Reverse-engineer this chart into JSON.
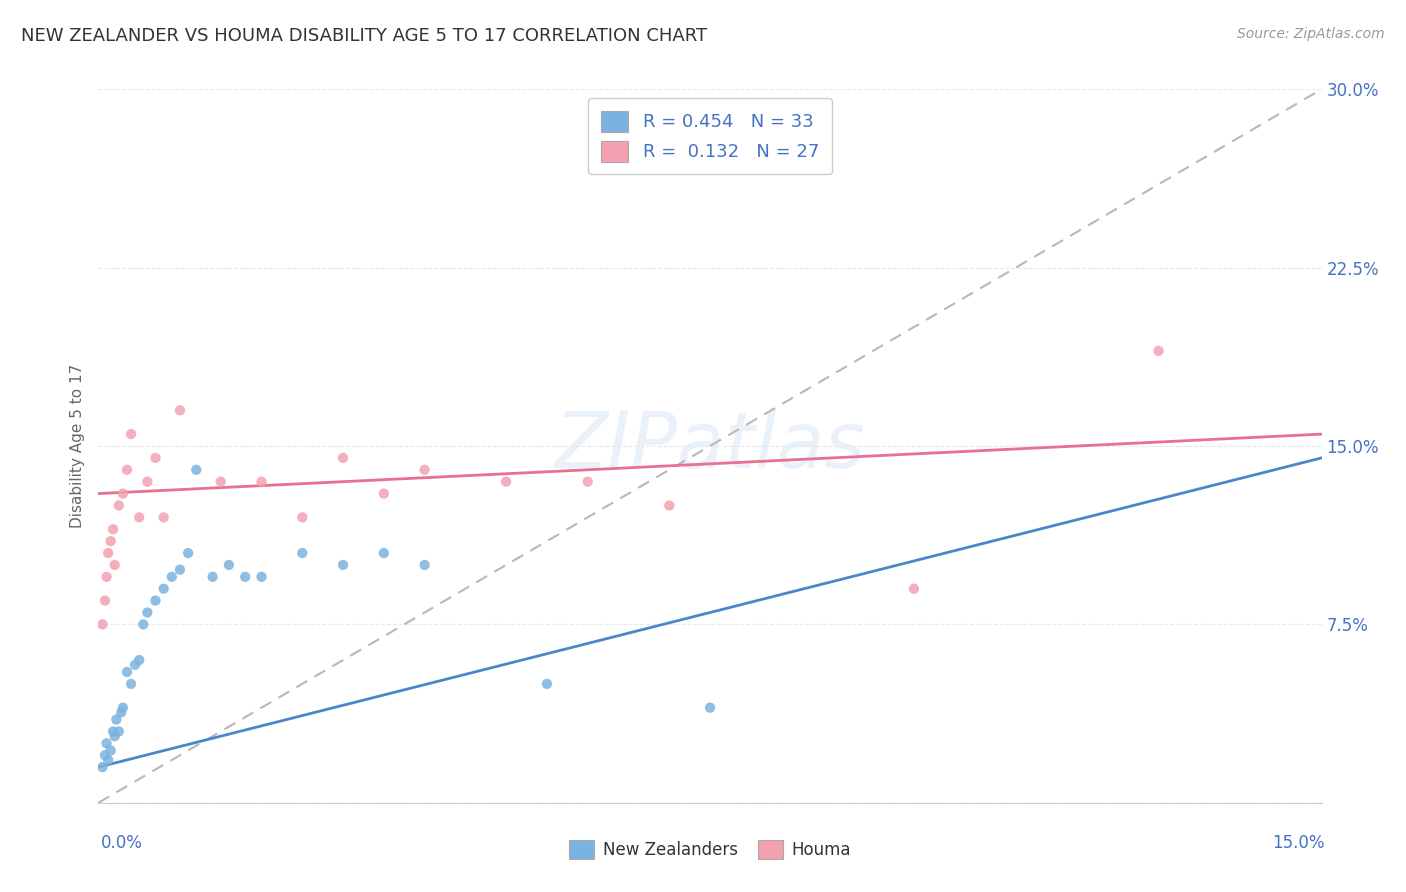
{
  "title": "NEW ZEALANDER VS HOUMA DISABILITY AGE 5 TO 17 CORRELATION CHART",
  "source": "Source: ZipAtlas.com",
  "ylabel": "Disability Age 5 to 17",
  "xmin": 0.0,
  "xmax": 15.0,
  "ymin": 0.0,
  "ymax": 30.0,
  "yticks": [
    0.0,
    7.5,
    15.0,
    22.5,
    30.0
  ],
  "ytick_labels_right": [
    "",
    "7.5%",
    "15.0%",
    "22.5%",
    "30.0%"
  ],
  "r_nz": 0.454,
  "n_nz": 33,
  "r_houma": 0.132,
  "n_houma": 27,
  "color_nz": "#7ab3e0",
  "color_houma": "#f4a0b0",
  "color_nz_line": "#4a86c8",
  "color_houma_line": "#e87090",
  "color_trend_dashed": "#b8b8b8",
  "color_text_blue": "#4472c4",
  "legend_label_nz": "New Zealanders",
  "legend_label_houma": "Houma",
  "nz_x": [
    0.05,
    0.08,
    0.1,
    0.12,
    0.15,
    0.18,
    0.2,
    0.22,
    0.25,
    0.28,
    0.3,
    0.35,
    0.4,
    0.45,
    0.5,
    0.55,
    0.6,
    0.7,
    0.8,
    0.9,
    1.0,
    1.1,
    1.2,
    1.4,
    1.6,
    1.8,
    2.0,
    2.5,
    3.0,
    3.5,
    4.0,
    5.5,
    7.5
  ],
  "nz_y": [
    1.5,
    2.0,
    2.5,
    1.8,
    2.2,
    3.0,
    2.8,
    3.5,
    3.0,
    3.8,
    4.0,
    5.5,
    5.0,
    5.8,
    6.0,
    7.5,
    8.0,
    8.5,
    9.0,
    9.5,
    9.8,
    10.5,
    14.0,
    9.5,
    10.0,
    9.5,
    9.5,
    10.5,
    10.0,
    10.5,
    10.0,
    5.0,
    4.0
  ],
  "houma_x": [
    0.05,
    0.08,
    0.1,
    0.12,
    0.15,
    0.18,
    0.2,
    0.25,
    0.3,
    0.35,
    0.4,
    0.5,
    0.6,
    0.7,
    0.8,
    1.0,
    1.5,
    2.0,
    2.5,
    3.0,
    3.5,
    4.0,
    5.0,
    6.0,
    7.0,
    10.0,
    13.0
  ],
  "houma_y": [
    7.5,
    8.5,
    9.5,
    10.5,
    11.0,
    11.5,
    10.0,
    12.5,
    13.0,
    14.0,
    15.5,
    12.0,
    13.5,
    14.5,
    12.0,
    16.5,
    13.5,
    13.5,
    12.0,
    14.5,
    13.0,
    14.0,
    13.5,
    13.5,
    12.5,
    9.0,
    19.0
  ],
  "nz_trendline": [
    0.0,
    15.0,
    1.5,
    14.5
  ],
  "houma_trendline": [
    0.0,
    15.0,
    13.0,
    15.5
  ],
  "background_color": "#ffffff",
  "grid_color": "#e8e8e8"
}
